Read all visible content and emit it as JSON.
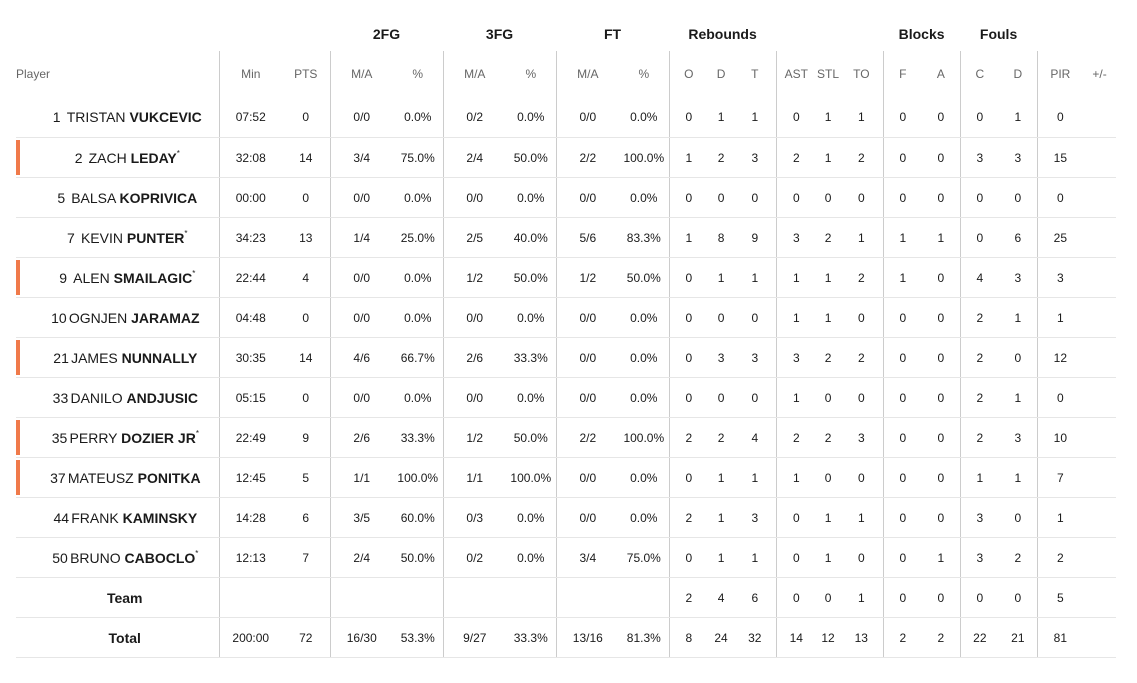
{
  "headers": {
    "groups": {
      "fg2": "2FG",
      "fg3": "3FG",
      "ft": "FT",
      "rebounds": "Rebounds",
      "blocks": "Blocks",
      "fouls": "Fouls"
    },
    "player": "Player",
    "min": "Min",
    "pts": "PTS",
    "fg2_ma": "M/A",
    "fg2_pct": "%",
    "fg3_ma": "M/A",
    "fg3_pct": "%",
    "ft_ma": "M/A",
    "ft_pct": "%",
    "reb_o": "O",
    "reb_d": "D",
    "reb_t": "T",
    "ast": "AST",
    "stl": "STL",
    "to": "TO",
    "blk_f": "F",
    "blk_a": "A",
    "fouls_c": "C",
    "fouls_d": "D",
    "pir": "PIR",
    "plus_minus": "+/-"
  },
  "players": [
    {
      "num": "1",
      "first": "TRISTAN",
      "last": "VUKCEVIC",
      "starter": "",
      "highlight": false,
      "min": "07:52",
      "pts": "0",
      "fg2_ma": "0/0",
      "fg2_pct": "0.0%",
      "fg3_ma": "0/2",
      "fg3_pct": "0.0%",
      "ft_ma": "0/0",
      "ft_pct": "0.0%",
      "reb_o": "0",
      "reb_d": "1",
      "reb_t": "1",
      "ast": "0",
      "stl": "1",
      "to": "1",
      "blk_f": "0",
      "blk_a": "0",
      "fouls_c": "0",
      "fouls_d": "1",
      "pir": "0",
      "plus_minus": ""
    },
    {
      "num": "2",
      "first": "ZACH",
      "last": "LEDAY",
      "starter": "*",
      "highlight": true,
      "min": "32:08",
      "pts": "14",
      "fg2_ma": "3/4",
      "fg2_pct": "75.0%",
      "fg3_ma": "2/4",
      "fg3_pct": "50.0%",
      "ft_ma": "2/2",
      "ft_pct": "100.0%",
      "reb_o": "1",
      "reb_d": "2",
      "reb_t": "3",
      "ast": "2",
      "stl": "1",
      "to": "2",
      "blk_f": "0",
      "blk_a": "0",
      "fouls_c": "3",
      "fouls_d": "3",
      "pir": "15",
      "plus_minus": ""
    },
    {
      "num": "5",
      "first": "BALSA",
      "last": "KOPRIVICA",
      "starter": "",
      "highlight": false,
      "min": "00:00",
      "pts": "0",
      "fg2_ma": "0/0",
      "fg2_pct": "0.0%",
      "fg3_ma": "0/0",
      "fg3_pct": "0.0%",
      "ft_ma": "0/0",
      "ft_pct": "0.0%",
      "reb_o": "0",
      "reb_d": "0",
      "reb_t": "0",
      "ast": "0",
      "stl": "0",
      "to": "0",
      "blk_f": "0",
      "blk_a": "0",
      "fouls_c": "0",
      "fouls_d": "0",
      "pir": "0",
      "plus_minus": ""
    },
    {
      "num": "7",
      "first": "KEVIN",
      "last": "PUNTER",
      "starter": "*",
      "highlight": false,
      "min": "34:23",
      "pts": "13",
      "fg2_ma": "1/4",
      "fg2_pct": "25.0%",
      "fg3_ma": "2/5",
      "fg3_pct": "40.0%",
      "ft_ma": "5/6",
      "ft_pct": "83.3%",
      "reb_o": "1",
      "reb_d": "8",
      "reb_t": "9",
      "ast": "3",
      "stl": "2",
      "to": "1",
      "blk_f": "1",
      "blk_a": "1",
      "fouls_c": "0",
      "fouls_d": "6",
      "pir": "25",
      "plus_minus": ""
    },
    {
      "num": "9",
      "first": "ALEN",
      "last": "SMAILAGIC",
      "starter": "*",
      "highlight": true,
      "min": "22:44",
      "pts": "4",
      "fg2_ma": "0/0",
      "fg2_pct": "0.0%",
      "fg3_ma": "1/2",
      "fg3_pct": "50.0%",
      "ft_ma": "1/2",
      "ft_pct": "50.0%",
      "reb_o": "0",
      "reb_d": "1",
      "reb_t": "1",
      "ast": "1",
      "stl": "1",
      "to": "2",
      "blk_f": "1",
      "blk_a": "0",
      "fouls_c": "4",
      "fouls_d": "3",
      "pir": "3",
      "plus_minus": ""
    },
    {
      "num": "10",
      "first": "OGNJEN",
      "last": "JARAMAZ",
      "starter": "",
      "highlight": false,
      "min": "04:48",
      "pts": "0",
      "fg2_ma": "0/0",
      "fg2_pct": "0.0%",
      "fg3_ma": "0/0",
      "fg3_pct": "0.0%",
      "ft_ma": "0/0",
      "ft_pct": "0.0%",
      "reb_o": "0",
      "reb_d": "0",
      "reb_t": "0",
      "ast": "1",
      "stl": "1",
      "to": "0",
      "blk_f": "0",
      "blk_a": "0",
      "fouls_c": "2",
      "fouls_d": "1",
      "pir": "1",
      "plus_minus": ""
    },
    {
      "num": "21",
      "first": "JAMES",
      "last": "NUNNALLY",
      "starter": "",
      "highlight": true,
      "min": "30:35",
      "pts": "14",
      "fg2_ma": "4/6",
      "fg2_pct": "66.7%",
      "fg3_ma": "2/6",
      "fg3_pct": "33.3%",
      "ft_ma": "0/0",
      "ft_pct": "0.0%",
      "reb_o": "0",
      "reb_d": "3",
      "reb_t": "3",
      "ast": "3",
      "stl": "2",
      "to": "2",
      "blk_f": "0",
      "blk_a": "0",
      "fouls_c": "2",
      "fouls_d": "0",
      "pir": "12",
      "plus_minus": ""
    },
    {
      "num": "33",
      "first": "DANILO",
      "last": "ANDJUSIC",
      "starter": "",
      "highlight": false,
      "min": "05:15",
      "pts": "0",
      "fg2_ma": "0/0",
      "fg2_pct": "0.0%",
      "fg3_ma": "0/0",
      "fg3_pct": "0.0%",
      "ft_ma": "0/0",
      "ft_pct": "0.0%",
      "reb_o": "0",
      "reb_d": "0",
      "reb_t": "0",
      "ast": "1",
      "stl": "0",
      "to": "0",
      "blk_f": "0",
      "blk_a": "0",
      "fouls_c": "2",
      "fouls_d": "1",
      "pir": "0",
      "plus_minus": ""
    },
    {
      "num": "35",
      "first": "PERRY",
      "last": "DOZIER JR",
      "starter": "*",
      "highlight": true,
      "min": "22:49",
      "pts": "9",
      "fg2_ma": "2/6",
      "fg2_pct": "33.3%",
      "fg3_ma": "1/2",
      "fg3_pct": "50.0%",
      "ft_ma": "2/2",
      "ft_pct": "100.0%",
      "reb_o": "2",
      "reb_d": "2",
      "reb_t": "4",
      "ast": "2",
      "stl": "2",
      "to": "3",
      "blk_f": "0",
      "blk_a": "0",
      "fouls_c": "2",
      "fouls_d": "3",
      "pir": "10",
      "plus_minus": ""
    },
    {
      "num": "37",
      "first": "MATEUSZ",
      "last": "PONITKA",
      "starter": "",
      "highlight": true,
      "min": "12:45",
      "pts": "5",
      "fg2_ma": "1/1",
      "fg2_pct": "100.0%",
      "fg3_ma": "1/1",
      "fg3_pct": "100.0%",
      "ft_ma": "0/0",
      "ft_pct": "0.0%",
      "reb_o": "0",
      "reb_d": "1",
      "reb_t": "1",
      "ast": "1",
      "stl": "0",
      "to": "0",
      "blk_f": "0",
      "blk_a": "0",
      "fouls_c": "1",
      "fouls_d": "1",
      "pir": "7",
      "plus_minus": ""
    },
    {
      "num": "44",
      "first": "FRANK",
      "last": "KAMINSKY",
      "starter": "",
      "highlight": false,
      "min": "14:28",
      "pts": "6",
      "fg2_ma": "3/5",
      "fg2_pct": "60.0%",
      "fg3_ma": "0/3",
      "fg3_pct": "0.0%",
      "ft_ma": "0/0",
      "ft_pct": "0.0%",
      "reb_o": "2",
      "reb_d": "1",
      "reb_t": "3",
      "ast": "0",
      "stl": "1",
      "to": "1",
      "blk_f": "0",
      "blk_a": "0",
      "fouls_c": "3",
      "fouls_d": "0",
      "pir": "1",
      "plus_minus": ""
    },
    {
      "num": "50",
      "first": "BRUNO",
      "last": "CABOCLO",
      "starter": "*",
      "highlight": false,
      "min": "12:13",
      "pts": "7",
      "fg2_ma": "2/4",
      "fg2_pct": "50.0%",
      "fg3_ma": "0/2",
      "fg3_pct": "0.0%",
      "ft_ma": "3/4",
      "ft_pct": "75.0%",
      "reb_o": "0",
      "reb_d": "1",
      "reb_t": "1",
      "ast": "0",
      "stl": "1",
      "to": "0",
      "blk_f": "0",
      "blk_a": "1",
      "fouls_c": "3",
      "fouls_d": "2",
      "pir": "2",
      "plus_minus": ""
    }
  ],
  "team": {
    "label": "Team",
    "min": "",
    "pts": "",
    "fg2_ma": "",
    "fg2_pct": "",
    "fg3_ma": "",
    "fg3_pct": "",
    "ft_ma": "",
    "ft_pct": "",
    "reb_o": "2",
    "reb_d": "4",
    "reb_t": "6",
    "ast": "0",
    "stl": "0",
    "to": "1",
    "blk_f": "0",
    "blk_a": "0",
    "fouls_c": "0",
    "fouls_d": "0",
    "pir": "5",
    "plus_minus": ""
  },
  "total": {
    "label": "Total",
    "min": "200:00",
    "pts": "72",
    "fg2_ma": "16/30",
    "fg2_pct": "53.3%",
    "fg3_ma": "9/27",
    "fg3_pct": "33.3%",
    "ft_ma": "13/16",
    "ft_pct": "81.3%",
    "reb_o": "8",
    "reb_d": "24",
    "reb_t": "32",
    "ast": "14",
    "stl": "12",
    "to": "13",
    "blk_f": "2",
    "blk_a": "2",
    "fouls_c": "22",
    "fouls_d": "21",
    "pir": "81",
    "plus_minus": ""
  },
  "colors": {
    "highlight_bar": "#f07a4a",
    "divider": "#cccccc",
    "row_border": "#e6e6e6"
  }
}
